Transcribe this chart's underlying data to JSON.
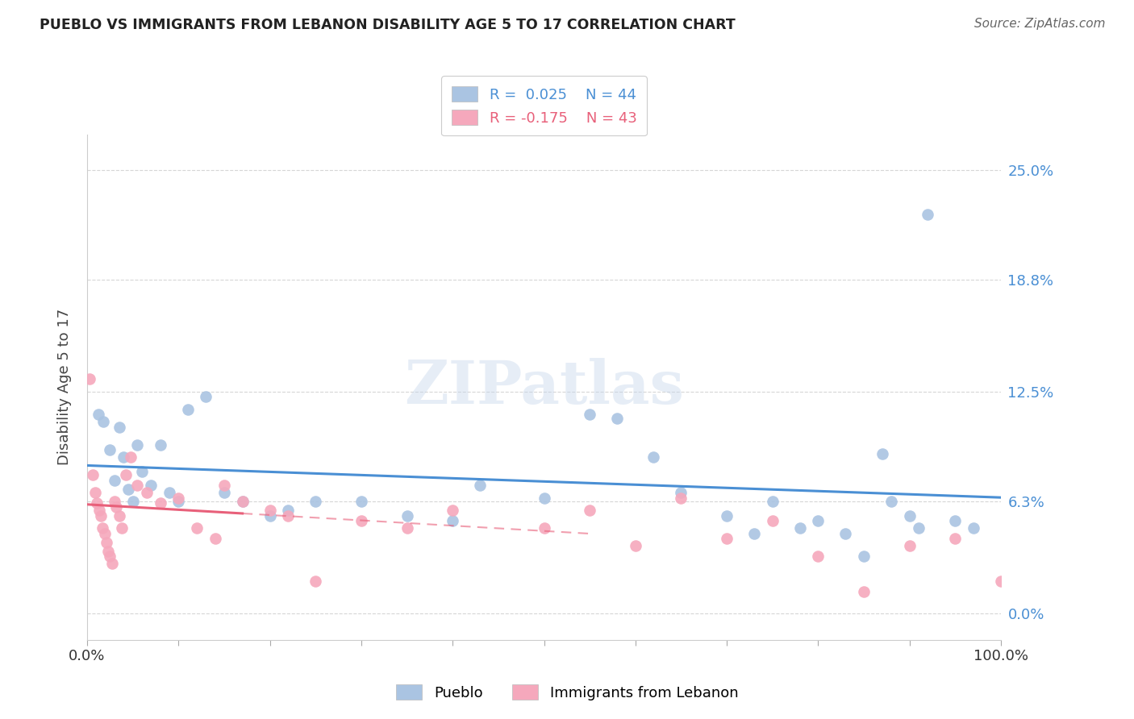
{
  "title": "PUEBLO VS IMMIGRANTS FROM LEBANON DISABILITY AGE 5 TO 17 CORRELATION CHART",
  "source": "Source: ZipAtlas.com",
  "ylabel": "Disability Age 5 to 17",
  "ytick_labels": [
    "0.0%",
    "6.3%",
    "12.5%",
    "18.8%",
    "25.0%"
  ],
  "ytick_values": [
    0.0,
    6.3,
    12.5,
    18.8,
    25.0
  ],
  "xlim": [
    0,
    100
  ],
  "ylim": [
    -1.5,
    27
  ],
  "legend1_label": "Pueblo",
  "legend2_label": "Immigrants from Lebanon",
  "r1": 0.025,
  "n1": 44,
  "r2": -0.175,
  "n2": 43,
  "blue_color": "#aac4e2",
  "pink_color": "#f5a8bc",
  "blue_line_color": "#4a8fd4",
  "pink_line_color": "#e8607a",
  "grid_color": "#cccccc",
  "blue_points_x": [
    1.2,
    1.8,
    2.5,
    3.0,
    3.5,
    4.0,
    4.5,
    5.0,
    5.5,
    6.0,
    7.0,
    8.0,
    9.0,
    10.0,
    11.0,
    13.0,
    15.0,
    17.0,
    20.0,
    22.0,
    25.0,
    30.0,
    35.0,
    40.0,
    43.0,
    50.0,
    55.0,
    58.0,
    62.0,
    65.0,
    70.0,
    73.0,
    75.0,
    78.0,
    80.0,
    83.0,
    85.0,
    87.0,
    88.0,
    90.0,
    91.0,
    92.0,
    95.0,
    97.0
  ],
  "blue_points_y": [
    11.2,
    10.8,
    9.2,
    7.5,
    10.5,
    8.8,
    7.0,
    6.3,
    9.5,
    8.0,
    7.2,
    9.5,
    6.8,
    6.3,
    11.5,
    12.2,
    6.8,
    6.3,
    5.5,
    5.8,
    6.3,
    6.3,
    5.5,
    5.2,
    7.2,
    6.5,
    11.2,
    11.0,
    8.8,
    6.8,
    5.5,
    4.5,
    6.3,
    4.8,
    5.2,
    4.5,
    3.2,
    9.0,
    6.3,
    5.5,
    4.8,
    22.5,
    5.2,
    4.8
  ],
  "pink_points_x": [
    0.3,
    0.6,
    0.9,
    1.1,
    1.3,
    1.5,
    1.7,
    1.9,
    2.1,
    2.3,
    2.5,
    2.7,
    3.0,
    3.2,
    3.5,
    3.8,
    4.2,
    4.8,
    5.5,
    6.5,
    8.0,
    10.0,
    12.0,
    14.0,
    15.0,
    17.0,
    20.0,
    22.0,
    25.0,
    30.0,
    35.0,
    40.0,
    50.0,
    55.0,
    60.0,
    65.0,
    70.0,
    75.0,
    80.0,
    85.0,
    90.0,
    95.0,
    100.0
  ],
  "pink_points_y": [
    13.2,
    7.8,
    6.8,
    6.2,
    5.8,
    5.5,
    4.8,
    4.5,
    4.0,
    3.5,
    3.2,
    2.8,
    6.3,
    6.0,
    5.5,
    4.8,
    7.8,
    8.8,
    7.2,
    6.8,
    6.2,
    6.5,
    4.8,
    4.2,
    7.2,
    6.3,
    5.8,
    5.5,
    1.8,
    5.2,
    4.8,
    5.8,
    4.8,
    5.8,
    3.8,
    6.5,
    4.2,
    5.2,
    3.2,
    1.2,
    3.8,
    4.2,
    1.8
  ],
  "blue_trend_x0": 0,
  "blue_trend_x1": 100,
  "blue_trend_y0": 6.5,
  "blue_trend_y1": 6.8,
  "pink_solid_x0": 0,
  "pink_solid_x1": 17,
  "pink_dashed_x0": 17,
  "pink_dashed_x1": 55,
  "pink_trend_y_at_0": 6.8,
  "pink_trend_y_at_55": 3.8
}
